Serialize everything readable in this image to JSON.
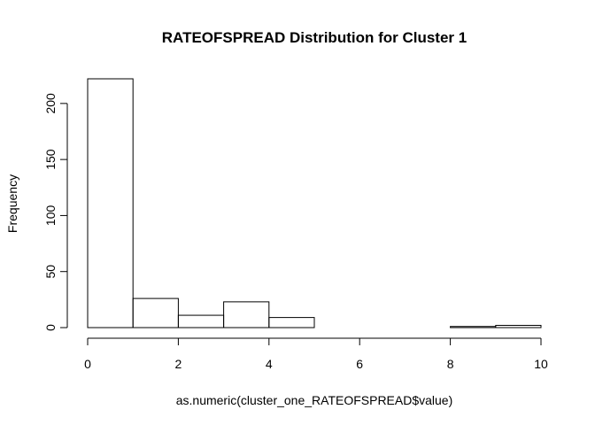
{
  "chart_data": {
    "type": "bar",
    "title": "RATEOFSPREAD Distribution for Cluster 1",
    "xlabel": "as.numeric(cluster_one_RATEOFSPREAD$value)",
    "ylabel": "Frequency",
    "bins": [
      {
        "x0": 0,
        "x1": 1,
        "count": 222
      },
      {
        "x0": 1,
        "x1": 2,
        "count": 26
      },
      {
        "x0": 2,
        "x1": 3,
        "count": 11
      },
      {
        "x0": 3,
        "x1": 4,
        "count": 23
      },
      {
        "x0": 4,
        "x1": 5,
        "count": 9
      },
      {
        "x0": 5,
        "x1": 6,
        "count": 0
      },
      {
        "x0": 6,
        "x1": 7,
        "count": 0
      },
      {
        "x0": 7,
        "x1": 8,
        "count": 0
      },
      {
        "x0": 8,
        "x1": 9,
        "count": 1
      },
      {
        "x0": 9,
        "x1": 10,
        "count": 2
      }
    ],
    "xlim": [
      0,
      10
    ],
    "ylim": [
      0,
      222
    ],
    "xticks": [
      0,
      2,
      4,
      6,
      8,
      10
    ],
    "yticks": [
      0,
      50,
      100,
      150,
      200
    ],
    "grid": false,
    "legend": "none"
  }
}
